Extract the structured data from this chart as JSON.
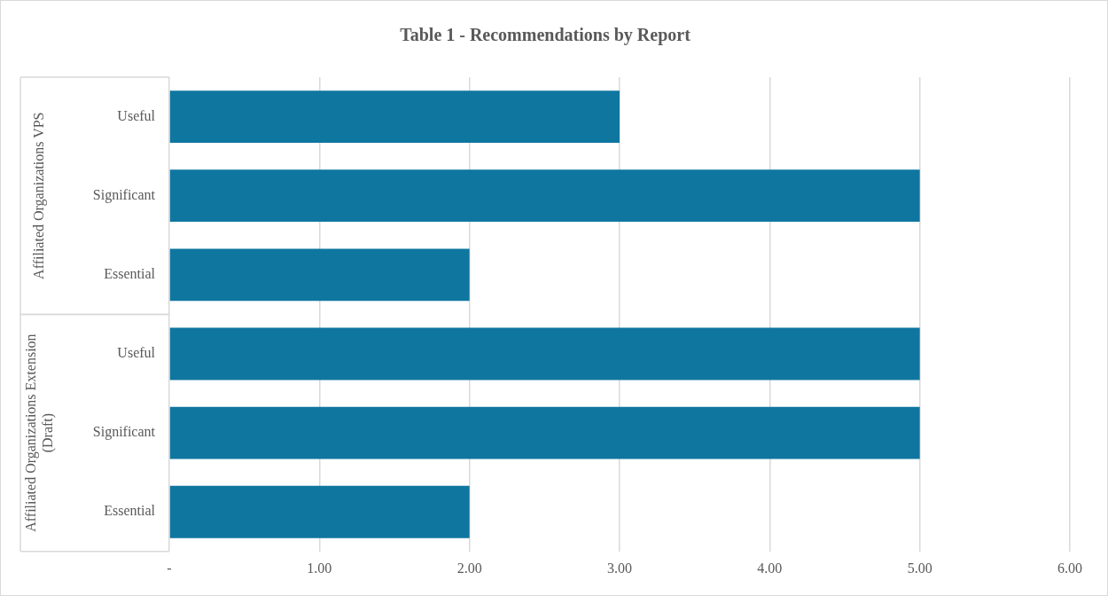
{
  "chart_data": {
    "type": "bar",
    "orientation": "horizontal",
    "title": "Table 1 - Recommendations by Report",
    "categories": [
      "Useful",
      "Significant",
      "Essential",
      "Useful",
      "Significant",
      "Essential"
    ],
    "values": [
      3,
      5,
      2,
      5,
      5,
      2
    ],
    "color": "#0f76a0",
    "xlim": [
      0,
      6
    ],
    "xticks": [
      {
        "value": 0,
        "label": "-"
      },
      {
        "value": 1,
        "label": "1.00"
      },
      {
        "value": 2,
        "label": "2.00"
      },
      {
        "value": 3,
        "label": "3.00"
      },
      {
        "value": 4,
        "label": "4.00"
      },
      {
        "value": 5,
        "label": "5.00"
      },
      {
        "value": 6,
        "label": "6.00"
      }
    ],
    "grid": "x",
    "annotations": [
      "Affiliated Organizations VPS",
      "Affiliated Organizations Extension (Draft)"
    ]
  }
}
